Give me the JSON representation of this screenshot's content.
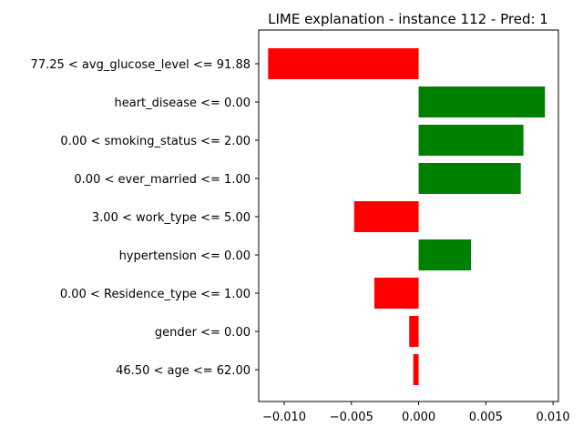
{
  "chart_data": {
    "type": "bar",
    "orientation": "horizontal",
    "title": "LIME explanation - instance 112 - Pred: 1",
    "xlabel": "",
    "ylabel": "",
    "xlim": [
      -0.0119,
      0.0104
    ],
    "xticks": [
      -0.01,
      -0.005,
      0.0,
      0.005,
      0.01
    ],
    "xtick_labels": [
      "−0.010",
      "−0.005",
      "0.000",
      "0.005",
      "0.010"
    ],
    "grid": false,
    "categories": [
      "77.25 < avg_glucose_level <= 91.88",
      "heart_disease <= 0.00",
      "0.00 < smoking_status <= 2.00",
      "0.00 < ever_married <= 1.00",
      "3.00 < work_type <= 5.00",
      "hypertension <= 0.00",
      "0.00 < Residence_type <= 1.00",
      "gender <= 0.00",
      "46.50 < age <= 62.00"
    ],
    "values": [
      -0.0112,
      0.0094,
      0.0078,
      0.0076,
      -0.0048,
      0.0039,
      -0.0033,
      -0.0007,
      -0.0004
    ],
    "colors": {
      "positive": "#008000",
      "negative": "#ff0000",
      "axis": "#000000",
      "background": "#ffffff"
    }
  }
}
